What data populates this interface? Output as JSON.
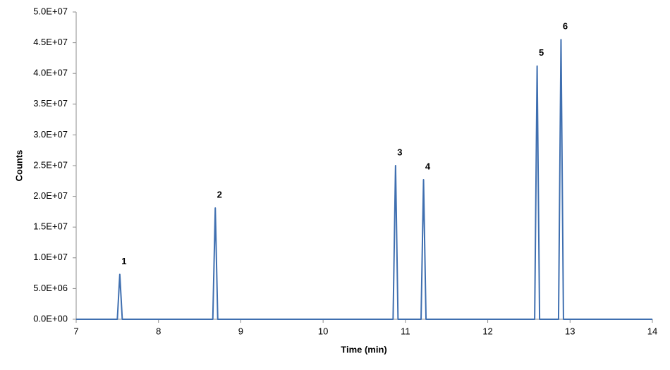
{
  "chart_data": {
    "type": "line",
    "x_label": "Time (min)",
    "y_label": "Counts",
    "color": "#3f6fb0",
    "x": [
      7,
      7.5,
      7.53,
      7.56,
      8.66,
      8.69,
      8.72,
      10.85,
      10.88,
      10.91,
      11.19,
      11.22,
      11.25,
      12.57,
      12.6,
      12.63,
      12.86,
      12.89,
      12.92,
      14
    ],
    "values": [
      0,
      0,
      7300000,
      0,
      0,
      18100000,
      0,
      0,
      25000000,
      0,
      0,
      22700000,
      0,
      0,
      41200000,
      0,
      0,
      45500000,
      0,
      0
    ],
    "annotations": [
      {
        "text": "1",
        "x": 7.53,
        "y": 7300000
      },
      {
        "text": "2",
        "x": 8.69,
        "y": 18100000
      },
      {
        "text": "3",
        "x": 10.88,
        "y": 25000000
      },
      {
        "text": "4",
        "x": 11.22,
        "y": 22700000
      },
      {
        "text": "5",
        "x": 12.6,
        "y": 41200000
      },
      {
        "text": "6",
        "x": 12.89,
        "y": 45500000
      }
    ],
    "xlim": [
      7,
      14
    ],
    "xticks": [
      7,
      8,
      9,
      10,
      11,
      12,
      13,
      14
    ],
    "ylim": [
      0,
      50000000
    ],
    "yticks": [
      {
        "value": 0,
        "label": "0.0E+00"
      },
      {
        "value": 5000000,
        "label": "5.0E+06"
      },
      {
        "value": 10000000,
        "label": "1.0E+07"
      },
      {
        "value": 15000000,
        "label": "1.5E+07"
      },
      {
        "value": 20000000,
        "label": "2.0E+07"
      },
      {
        "value": 25000000,
        "label": "2.5E+07"
      },
      {
        "value": 30000000,
        "label": "3.0E+07"
      },
      {
        "value": 35000000,
        "label": "3.5E+07"
      },
      {
        "value": 40000000,
        "label": "4.0E+07"
      },
      {
        "value": 45000000,
        "label": "4.5E+07"
      },
      {
        "value": 50000000,
        "label": "5.0E+07"
      }
    ]
  }
}
